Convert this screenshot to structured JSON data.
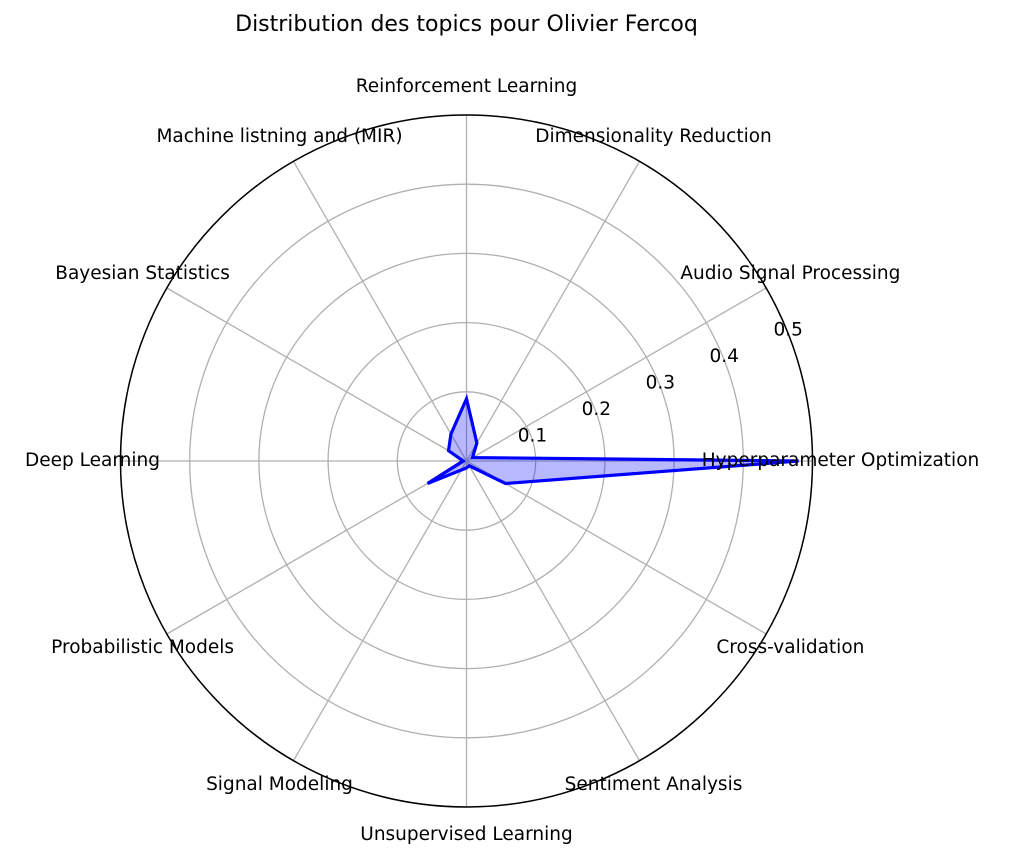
{
  "chart_data": {
    "type": "radar",
    "title": "Distribution des topics pour Olivier Fercoq",
    "categories": [
      "Hyperparameter Optimization",
      "Audio Signal Processing",
      "Dimensionality Reduction",
      "Reinforcement Learning",
      "Machine listning and (MIR)",
      "Bayesian Statistics",
      "Deep Learning",
      "Probabilistic Models",
      "Signal Modeling",
      "Unsupervised Learning",
      "Sentiment Analysis",
      "Cross-validation"
    ],
    "series": [
      {
        "values": [
          0.48,
          0.01,
          0.03,
          0.09,
          0.045,
          0.03,
          0.005,
          0.065,
          0.015,
          0.01,
          0.008,
          0.065
        ],
        "line_color": "#0000ff",
        "fill_color": "#0000ff",
        "fill_opacity": 0.28
      }
    ],
    "radial_ticks": [
      "0.1",
      "0.2",
      "0.3",
      "0.4",
      "0.5"
    ],
    "radial_tick_values": [
      0.1,
      0.2,
      0.3,
      0.4,
      0.5
    ],
    "rlim": [
      0,
      0.5
    ],
    "grid": true,
    "grid_color": "#b0b0b0"
  }
}
